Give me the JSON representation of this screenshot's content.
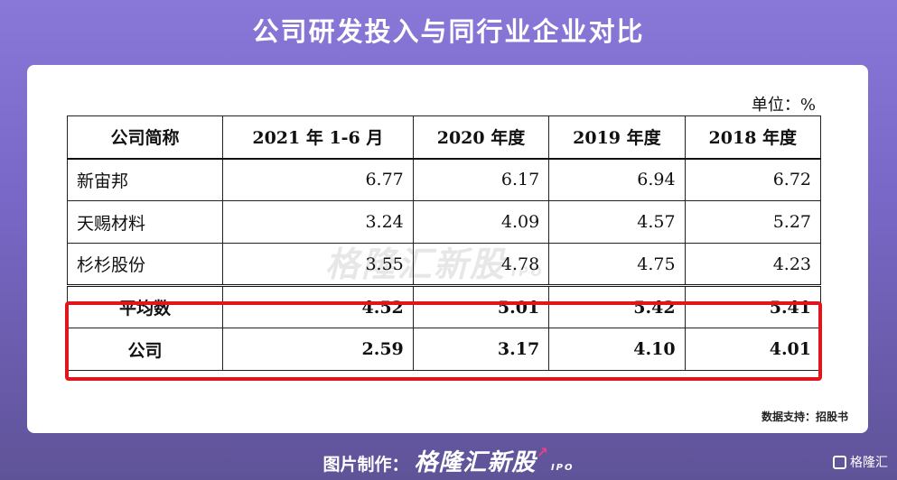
{
  "title": "公司研发投入与同行业企业对比",
  "unit": "单位：%",
  "chart_data": {
    "type": "table",
    "headers": [
      "公司简称",
      "2021 年 1-6 月",
      "2020 年度",
      "2019 年度",
      "2018 年度"
    ],
    "rows": [
      {
        "name": "新宙邦",
        "values": [
          "6.77",
          "6.17",
          "6.94",
          "6.72"
        ]
      },
      {
        "name": "天赐材料",
        "values": [
          "3.24",
          "4.09",
          "4.57",
          "5.27"
        ]
      },
      {
        "name": "杉杉股份",
        "values": [
          "3.55",
          "4.78",
          "4.75",
          "4.23"
        ]
      },
      {
        "name": "平均数",
        "values": [
          "4.52",
          "5.01",
          "5.42",
          "5.41"
        ]
      },
      {
        "name": "公司",
        "values": [
          "2.59",
          "3.17",
          "4.10",
          "4.01"
        ]
      }
    ]
  },
  "watermark": {
    "brand": "格隆汇新股",
    "sub": "IPO"
  },
  "source": "数据支持：招股书",
  "footer": {
    "label": "图片制作：",
    "brand": "格隆汇新股",
    "ipo": "IPO"
  },
  "corner_logo": "格隆汇",
  "colors": {
    "highlight": "#e0161c",
    "background": "#7a68c8"
  }
}
